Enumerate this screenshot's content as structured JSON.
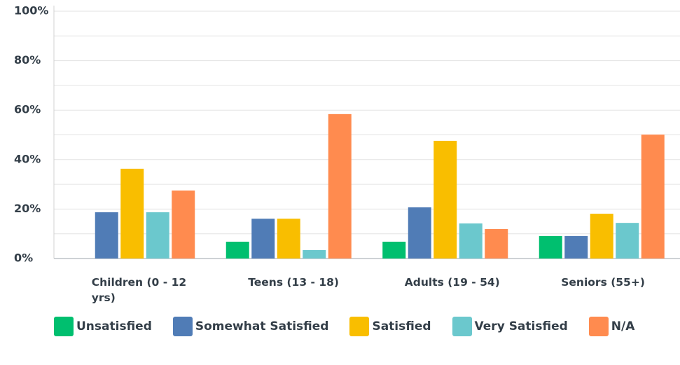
{
  "chart_data": {
    "type": "bar",
    "categories": [
      "Children (0 - 12 yrs)",
      "Teens (13 - 18)",
      "Adults (19 - 54)",
      "Seniors (55+)"
    ],
    "series": [
      {
        "name": "Unsatisfied",
        "color": "#00bf6f",
        "values": [
          0,
          6.8,
          6.8,
          9.1
        ]
      },
      {
        "name": "Somewhat Satisfied",
        "color": "#507cb6",
        "values": [
          18.7,
          16.1,
          20.7,
          9.1
        ]
      },
      {
        "name": "Satisfied",
        "color": "#f9be00",
        "values": [
          36.3,
          16.1,
          47.6,
          18.1
        ]
      },
      {
        "name": "Very Satisfied",
        "color": "#6bc8cd",
        "values": [
          18.7,
          3.4,
          14.2,
          14.4
        ]
      },
      {
        "name": "N/A",
        "color": "#ff8b4f",
        "values": [
          27.5,
          58.4,
          11.9,
          50.1
        ]
      }
    ],
    "ylim": [
      0,
      100
    ],
    "yticks": [
      {
        "value": 0,
        "label": "0%"
      },
      {
        "value": 20,
        "label": "20%"
      },
      {
        "value": 40,
        "label": "40%"
      },
      {
        "value": 60,
        "label": "60%"
      },
      {
        "value": 80,
        "label": "80%"
      },
      {
        "value": 100,
        "label": "100%"
      }
    ],
    "grid": true
  }
}
